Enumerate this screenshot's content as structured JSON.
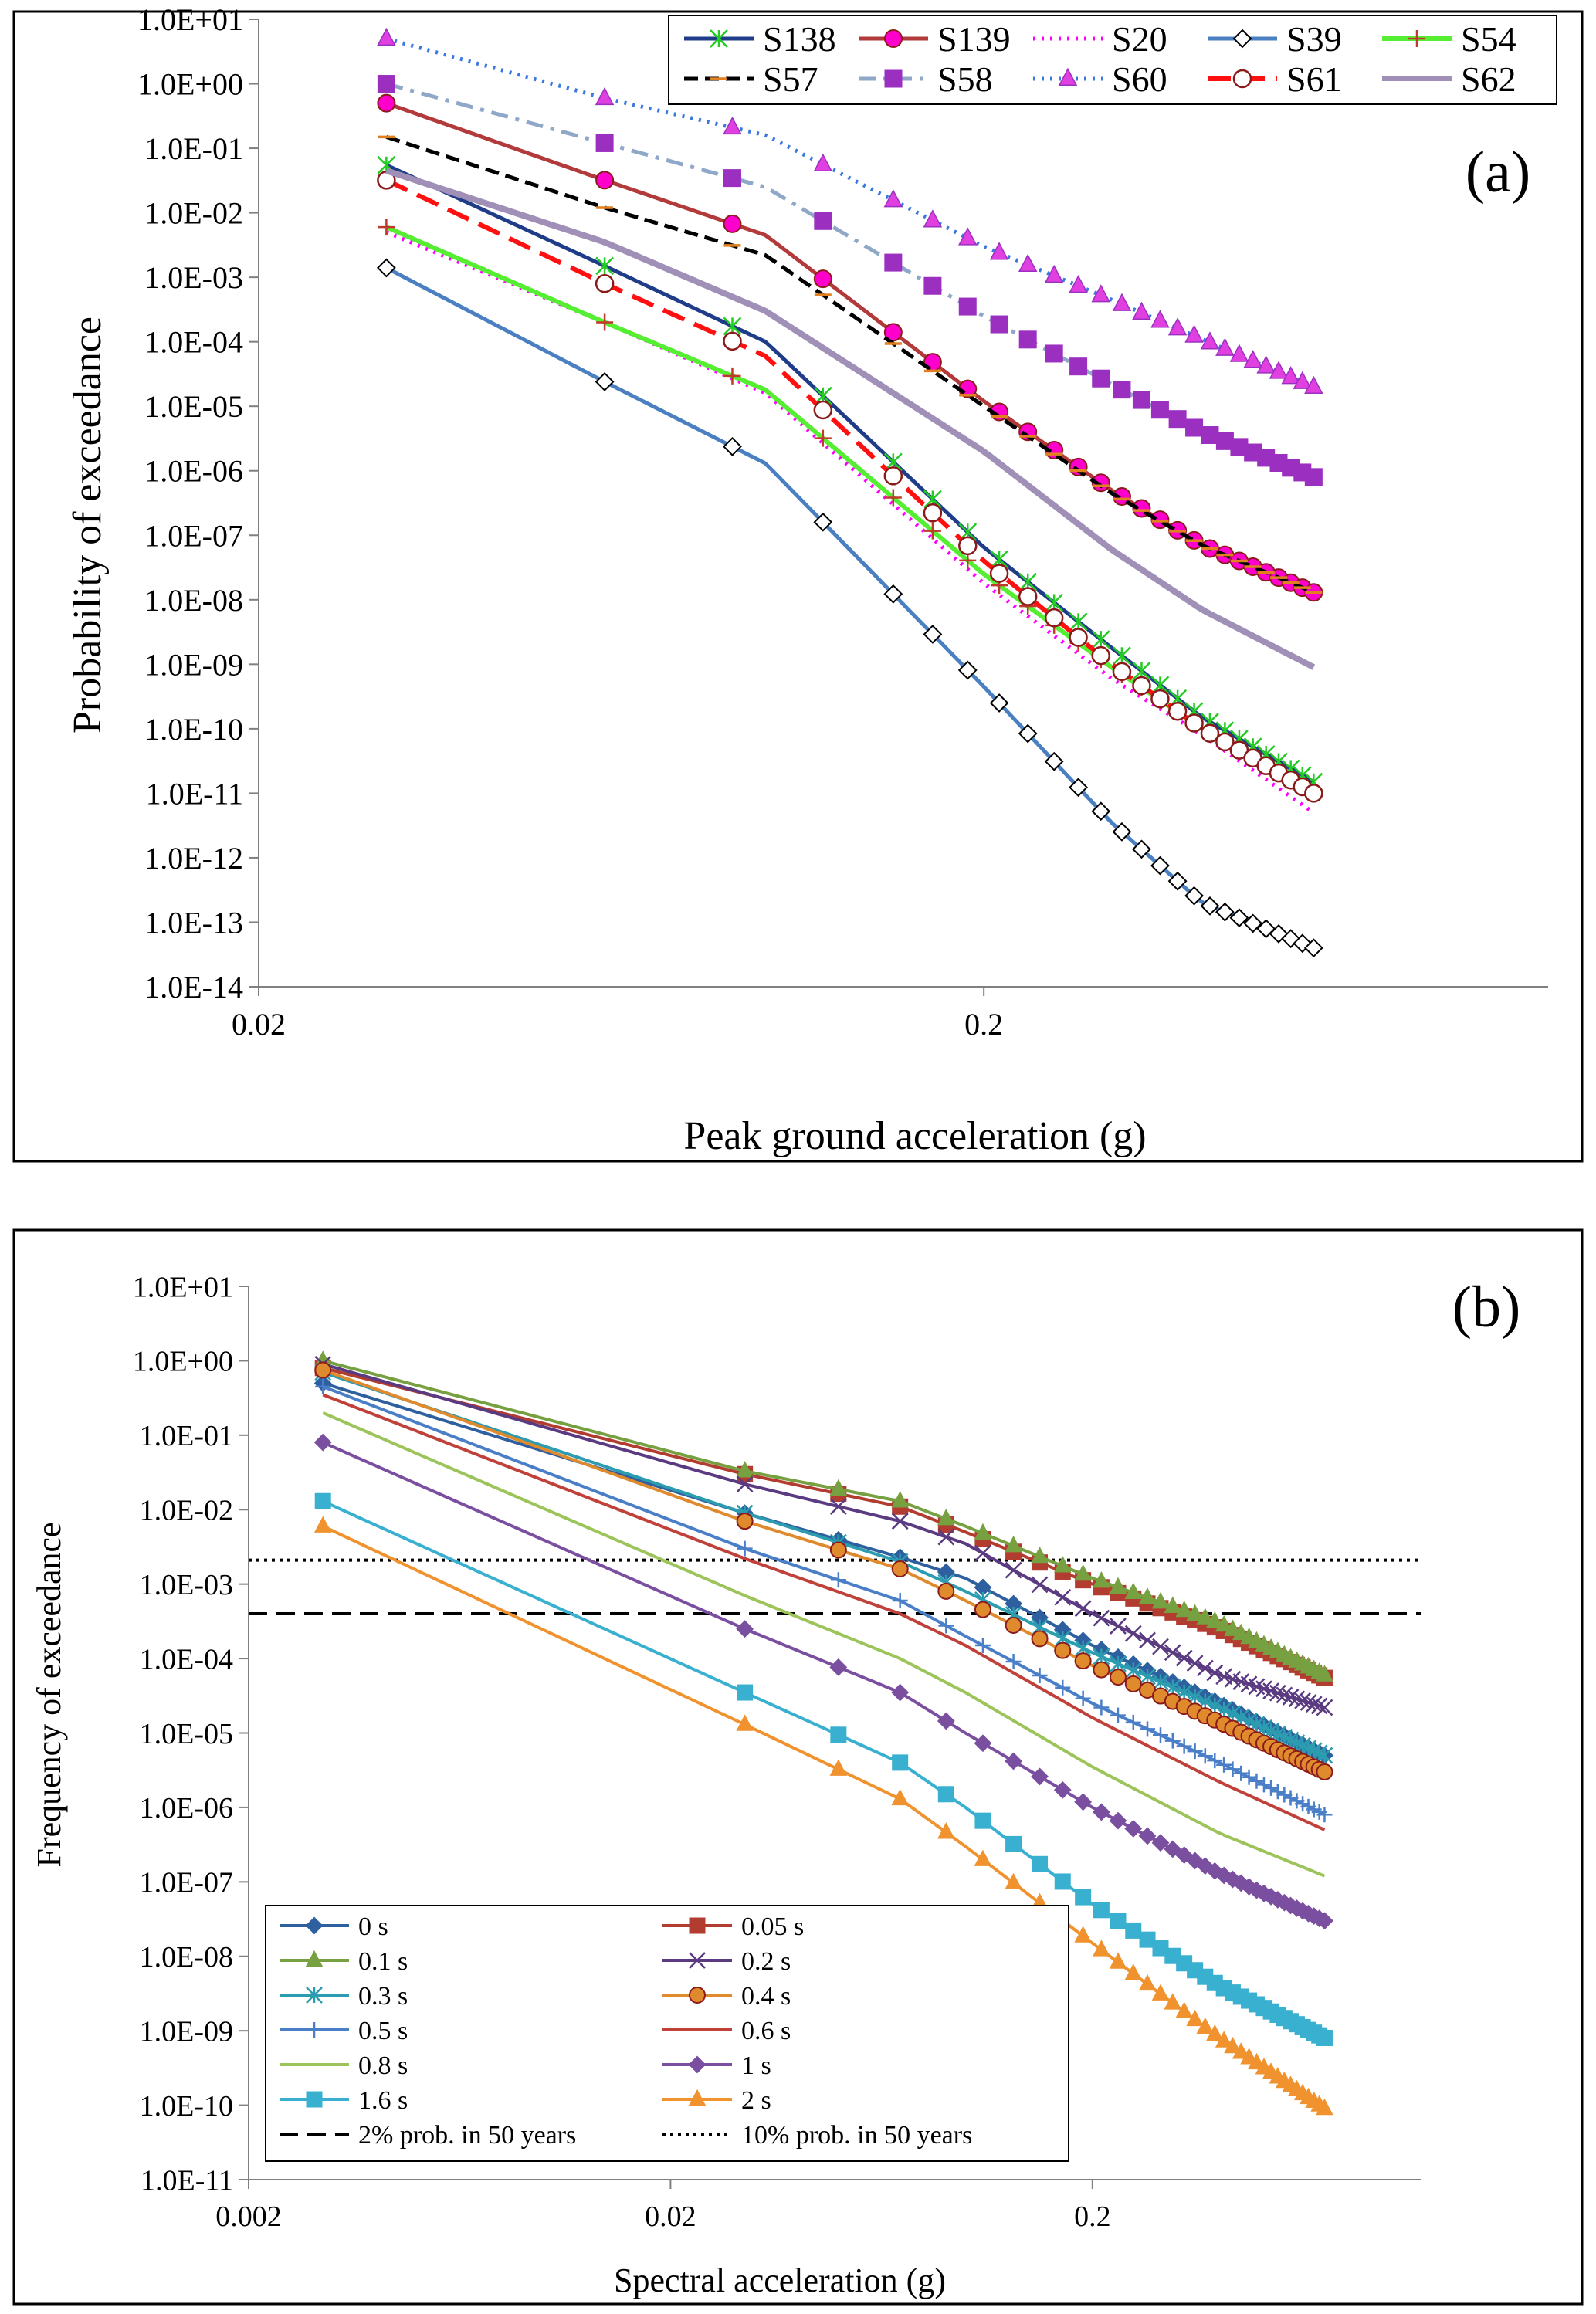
{
  "chart_data": [
    {
      "id": "a",
      "type": "line",
      "scale": "log-log",
      "panel_label": "(a)",
      "xlabel": "Peak ground acceleration (g)",
      "ylabel": "Probability of exceedance",
      "xlim": [
        0.02,
        1.2
      ],
      "ylim": [
        1e-14,
        10
      ],
      "x_ticks": [
        0.02,
        0.2
      ],
      "x_tick_labels": [
        "0.02",
        "0.2"
      ],
      "y_ticks": [
        1e-14,
        1e-13,
        1e-12,
        1e-11,
        1e-10,
        1e-09,
        1e-08,
        1e-07,
        1e-06,
        1e-05,
        0.0001,
        0.001,
        0.01,
        0.1,
        1,
        10
      ],
      "y_tick_labels": [
        "1.0E-14",
        "1.0E-13",
        "1.0E-12",
        "1.0E-11",
        "1.0E-10",
        "1.0E-09",
        "1.0E-08",
        "1.0E-07",
        "1.0E-06",
        "1.0E-05",
        "1.0E-04",
        "1.0E-03",
        "1.0E-02",
        "1.0E-01",
        "1.0E+00",
        "1.0E+01"
      ],
      "legend_position": "top-right",
      "marker_x": [
        0.03,
        0.06,
        0.09,
        0.12,
        0.15,
        0.17,
        0.19,
        0.21,
        0.23,
        0.25,
        0.27,
        0.29,
        0.31,
        0.33,
        0.35,
        0.37,
        0.39,
        0.41,
        0.43,
        0.45,
        0.47,
        0.49,
        0.51,
        0.53,
        0.55,
        0.57
      ],
      "series": [
        {
          "name": "S138",
          "color": "#1f3c88",
          "lw": 5,
          "dash": "",
          "marker": "asterisk",
          "marker_color": "#22cc22",
          "anchors": [
            [
              0.03,
              0.055
            ],
            [
              0.06,
              0.0015
            ],
            [
              0.1,
              0.0001
            ],
            [
              0.2,
              6.5e-08
            ],
            [
              0.3,
              1.8e-09
            ],
            [
              0.4,
              1.5e-10
            ],
            [
              0.57,
              1.5e-11
            ]
          ]
        },
        {
          "name": "S139",
          "color": "#b23a3a",
          "lw": 5,
          "dash": "",
          "marker": "circle",
          "marker_color": "#ff00cc",
          "anchors": [
            [
              0.03,
              0.5
            ],
            [
              0.06,
              0.032
            ],
            [
              0.1,
              0.0045
            ],
            [
              0.2,
              1.2e-05
            ],
            [
              0.3,
              5e-07
            ],
            [
              0.4,
              7e-08
            ],
            [
              0.57,
              1.3e-08
            ]
          ]
        },
        {
          "name": "S20",
          "color": "#ff00ff",
          "lw": 5,
          "dash": "3,8",
          "marker": "none",
          "marker_color": "",
          "anchors": [
            [
              0.03,
              0.005
            ],
            [
              0.06,
              0.0002
            ],
            [
              0.1,
              1.6e-05
            ],
            [
              0.2,
              1.8e-08
            ],
            [
              0.3,
              6e-10
            ],
            [
              0.4,
              8e-11
            ],
            [
              0.57,
              5e-12
            ]
          ]
        },
        {
          "name": "S39",
          "color": "#4a7fc1",
          "lw": 5,
          "dash": "",
          "marker": "diamond",
          "marker_color": "#000000",
          "anchors": [
            [
              0.03,
              0.0014
            ],
            [
              0.06,
              2.4e-05
            ],
            [
              0.1,
              1.3e-06
            ],
            [
              0.2,
              4.5e-10
            ],
            [
              0.3,
              3.5e-12
            ],
            [
              0.4,
              2e-13
            ],
            [
              0.57,
              4e-14
            ]
          ]
        },
        {
          "name": "S54",
          "color": "#55ee33",
          "lw": 6,
          "dash": "",
          "marker": "plus",
          "marker_color": "#c0392b",
          "anchors": [
            [
              0.03,
              0.006
            ],
            [
              0.06,
              0.0002
            ],
            [
              0.1,
              1.8e-05
            ],
            [
              0.2,
              2.5e-08
            ],
            [
              0.3,
              9e-10
            ],
            [
              0.4,
              1e-10
            ],
            [
              0.57,
              1e-11
            ]
          ]
        },
        {
          "name": "S57",
          "color": "#000000",
          "lw": 5,
          "dash": "18,9",
          "marker": "dash",
          "marker_color": "#e08020",
          "anchors": [
            [
              0.03,
              0.15
            ],
            [
              0.06,
              0.012
            ],
            [
              0.1,
              0.0022
            ],
            [
              0.2,
              1e-05
            ],
            [
              0.3,
              4.5e-07
            ],
            [
              0.4,
              7e-08
            ],
            [
              0.57,
              1.3e-08
            ]
          ]
        },
        {
          "name": "S58",
          "color": "#8fa8c8",
          "lw": 5,
          "dash": "22,10,5,10",
          "marker": "square",
          "marker_color": "#9b30c0",
          "anchors": [
            [
              0.03,
              1.0
            ],
            [
              0.06,
              0.12
            ],
            [
              0.1,
              0.025
            ],
            [
              0.2,
              0.00025
            ],
            [
              0.3,
              2.2e-05
            ],
            [
              0.4,
              4e-06
            ],
            [
              0.57,
              8e-07
            ]
          ]
        },
        {
          "name": "S60",
          "color": "#3a78e0",
          "lw": 5,
          "dash": "3,8",
          "marker": "triangle",
          "marker_color": "#e040e0",
          "anchors": [
            [
              0.03,
              5.0
            ],
            [
              0.06,
              0.6
            ],
            [
              0.1,
              0.16
            ],
            [
              0.2,
              0.003
            ],
            [
              0.3,
              0.00045
            ],
            [
              0.4,
              0.00011
            ],
            [
              0.57,
              2e-05
            ]
          ]
        },
        {
          "name": "S61",
          "color": "#ff1010",
          "lw": 6,
          "dash": "30,14",
          "marker": "open-circle",
          "marker_color": "#8b1a1a",
          "anchors": [
            [
              0.03,
              0.032
            ],
            [
              0.06,
              0.0008
            ],
            [
              0.1,
              6e-05
            ],
            [
              0.2,
              4e-08
            ],
            [
              0.3,
              1e-09
            ],
            [
              0.4,
              1e-10
            ],
            [
              0.57,
              1e-11
            ]
          ]
        },
        {
          "name": "S62",
          "color": "#a090b8",
          "lw": 8,
          "dash": "",
          "marker": "none",
          "marker_color": "",
          "anchors": [
            [
              0.03,
              0.045
            ],
            [
              0.06,
              0.0035
            ],
            [
              0.1,
              0.0003
            ],
            [
              0.2,
              2e-06
            ],
            [
              0.3,
              6e-08
            ],
            [
              0.4,
              7e-09
            ],
            [
              0.57,
              9e-10
            ]
          ]
        }
      ]
    },
    {
      "id": "b",
      "type": "line",
      "scale": "log-log",
      "panel_label": "(b)",
      "xlabel": "Spectral acceleration (g)",
      "ylabel": "Frequency of exceedance",
      "xlim": [
        0.002,
        1.2
      ],
      "ylim": [
        1e-11,
        10
      ],
      "x_ticks": [
        0.002,
        0.02,
        0.2
      ],
      "x_tick_labels": [
        "0.002",
        "0.02",
        "0.2"
      ],
      "y_ticks": [
        1e-11,
        1e-10,
        1e-09,
        1e-08,
        1e-07,
        1e-06,
        1e-05,
        0.0001,
        0.001,
        0.01,
        0.1,
        1,
        10
      ],
      "y_tick_labels": [
        "1.0E-11",
        "1.0E-10",
        "1.0E-09",
        "1.0E-08",
        "1.0E-07",
        "1.0E-06",
        "1.0E-05",
        "1.0E-04",
        "1.0E-03",
        "1.0E-02",
        "1.0E-01",
        "1.0E+00",
        "1.0E+01"
      ],
      "legend_position": "bottom-left",
      "marker_x": [
        0.003,
        0.03,
        0.05,
        0.07,
        0.09,
        0.11,
        0.13,
        0.15,
        0.17,
        0.19,
        0.21,
        0.23,
        0.25,
        0.27,
        0.29,
        0.31,
        0.33,
        0.35,
        0.37,
        0.39,
        0.41,
        0.43,
        0.45,
        0.47,
        0.49,
        0.51,
        0.53,
        0.55,
        0.57,
        0.59,
        0.61,
        0.63,
        0.65,
        0.67,
        0.69,
        0.71
      ],
      "reference_lines": [
        {
          "name": "2% prob. in 50 years",
          "y": 0.0004,
          "x_start": 0.002,
          "color": "#000000",
          "dash": "24,12"
        },
        {
          "name": "10% prob. in 50 years",
          "y": 0.0021,
          "x_start": 0.002,
          "color": "#000000",
          "dash": "4,6"
        }
      ],
      "series": [
        {
          "name": "0 s",
          "color": "#2e5f9e",
          "marker": "diamond",
          "marker_color": "#2e5f9e",
          "anchors": [
            [
              0.003,
              0.5
            ],
            [
              0.03,
              0.009
            ],
            [
              0.07,
              0.0023
            ],
            [
              0.1,
              0.0012
            ],
            [
              0.2,
              0.00015
            ],
            [
              0.4,
              2.5e-05
            ],
            [
              0.71,
              5e-06
            ]
          ]
        },
        {
          "name": "0.05 s",
          "color": "#b23c2f",
          "marker": "square",
          "marker_color": "#b23c2f",
          "anchors": [
            [
              0.003,
              0.8
            ],
            [
              0.03,
              0.03
            ],
            [
              0.07,
              0.011
            ],
            [
              0.1,
              0.005
            ],
            [
              0.2,
              0.001
            ],
            [
              0.4,
              0.00025
            ],
            [
              0.71,
              5.5e-05
            ]
          ]
        },
        {
          "name": "0.1 s",
          "color": "#77a040",
          "marker": "triangle",
          "marker_color": "#77a040",
          "anchors": [
            [
              0.003,
              1.0
            ],
            [
              0.03,
              0.033
            ],
            [
              0.07,
              0.013
            ],
            [
              0.1,
              0.006
            ],
            [
              0.2,
              0.0012
            ],
            [
              0.4,
              0.0003
            ],
            [
              0.71,
              6e-05
            ]
          ]
        },
        {
          "name": "0.2 s",
          "color": "#5a3a80",
          "marker": "x",
          "marker_color": "#5a3a80",
          "anchors": [
            [
              0.003,
              0.9
            ],
            [
              0.03,
              0.022
            ],
            [
              0.07,
              0.007
            ],
            [
              0.1,
              0.0035
            ],
            [
              0.2,
              0.0004
            ],
            [
              0.4,
              6e-05
            ],
            [
              0.71,
              2.2e-05
            ]
          ]
        },
        {
          "name": "0.3 s",
          "color": "#2c9cb0",
          "marker": "asterisk",
          "marker_color": "#2c9cb0",
          "anchors": [
            [
              0.003,
              0.7
            ],
            [
              0.03,
              0.009
            ],
            [
              0.07,
              0.002
            ],
            [
              0.1,
              0.0008
            ],
            [
              0.2,
              0.00012
            ],
            [
              0.4,
              2.2e-05
            ],
            [
              0.71,
              5e-06
            ]
          ]
        },
        {
          "name": "0.4 s",
          "color": "#e08a2e",
          "marker": "circle",
          "marker_color": "#e08a2e",
          "anchors": [
            [
              0.003,
              0.75
            ],
            [
              0.03,
              0.007
            ],
            [
              0.07,
              0.0016
            ],
            [
              0.1,
              0.0006
            ],
            [
              0.2,
              8e-05
            ],
            [
              0.4,
              1.4e-05
            ],
            [
              0.71,
              3e-06
            ]
          ]
        },
        {
          "name": "0.5 s",
          "color": "#4a7fc8",
          "marker": "plus",
          "marker_color": "#4a7fc8",
          "anchors": [
            [
              0.003,
              0.45
            ],
            [
              0.03,
              0.003
            ],
            [
              0.07,
              0.0006
            ],
            [
              0.1,
              0.0002
            ],
            [
              0.2,
              2.5e-05
            ],
            [
              0.4,
              4e-06
            ],
            [
              0.71,
              8e-07
            ]
          ]
        },
        {
          "name": "0.6 s",
          "color": "#c0403a",
          "marker": "none",
          "marker_color": "#c0403a",
          "anchors": [
            [
              0.003,
              0.35
            ],
            [
              0.03,
              0.0022
            ],
            [
              0.07,
              0.0004
            ],
            [
              0.1,
              0.00015
            ],
            [
              0.2,
              1.6e-05
            ],
            [
              0.4,
              2.2e-06
            ],
            [
              0.71,
              5e-07
            ]
          ]
        },
        {
          "name": "0.8 s",
          "color": "#9cc45a",
          "marker": "none",
          "marker_color": "#9cc45a",
          "anchors": [
            [
              0.003,
              0.2
            ],
            [
              0.03,
              0.0007
            ],
            [
              0.07,
              0.0001
            ],
            [
              0.1,
              3.5e-05
            ],
            [
              0.2,
              3.5e-06
            ],
            [
              0.4,
              4.5e-07
            ],
            [
              0.71,
              1.2e-07
            ]
          ]
        },
        {
          "name": "1 s",
          "color": "#7b4fa0",
          "marker": "diamond",
          "marker_color": "#7b4fa0",
          "anchors": [
            [
              0.003,
              0.08
            ],
            [
              0.03,
              0.00025
            ],
            [
              0.07,
              3.5e-05
            ],
            [
              0.1,
              1e-05
            ],
            [
              0.2,
              1e-06
            ],
            [
              0.4,
              1.3e-07
            ],
            [
              0.71,
              3e-08
            ]
          ]
        },
        {
          "name": "1.6 s",
          "color": "#3ab0d0",
          "marker": "square",
          "marker_color": "#3ab0d0",
          "anchors": [
            [
              0.003,
              0.013
            ],
            [
              0.03,
              3.5e-05
            ],
            [
              0.07,
              4e-06
            ],
            [
              0.1,
              1e-06
            ],
            [
              0.2,
              5e-08
            ],
            [
              0.4,
              4e-09
            ],
            [
              0.71,
              8e-10
            ]
          ]
        },
        {
          "name": "2 s",
          "color": "#f0922e",
          "marker": "triangle",
          "marker_color": "#f0922e",
          "anchors": [
            [
              0.003,
              0.006
            ],
            [
              0.03,
              1.3e-05
            ],
            [
              0.07,
              1.3e-06
            ],
            [
              0.1,
              3e-07
            ],
            [
              0.2,
              1.5e-08
            ],
            [
              0.4,
              8e-10
            ],
            [
              0.71,
              9e-11
            ]
          ]
        }
      ]
    }
  ]
}
